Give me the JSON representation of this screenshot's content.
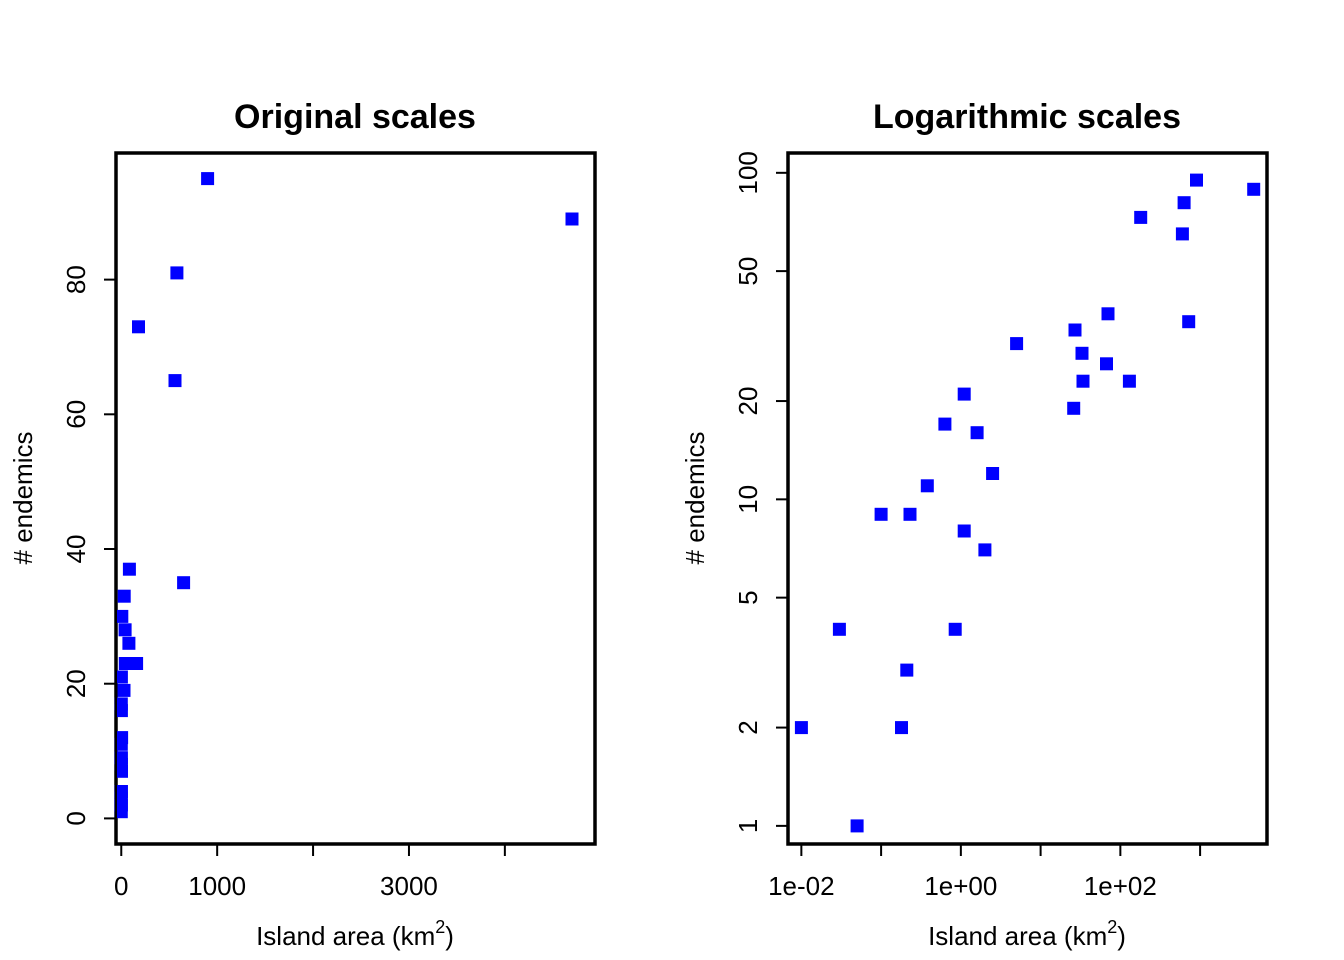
{
  "chart_data": [
    {
      "type": "scatter",
      "title": "Original scales",
      "xlabel": "Island area (km",
      "xlabel_sup": "2",
      "xlabel_close": ")",
      "ylabel": "# endemics",
      "x_scale": "linear",
      "y_scale": "linear",
      "xlim": [
        -55,
        4940
      ],
      "ylim": [
        -3.8,
        98.8
      ],
      "x_ticks": [
        0,
        1000,
        2000,
        3000,
        4000
      ],
      "x_tick_labels": [
        "0",
        "1000",
        "",
        "3000",
        ""
      ],
      "y_ticks": [
        0,
        20,
        40,
        60,
        80
      ],
      "y_tick_labels": [
        "0",
        "20",
        "40",
        "60",
        "80"
      ],
      "marker_color": "#0000ff",
      "grid": false,
      "points": [
        {
          "x": 0.01,
          "y": 2
        },
        {
          "x": 0.04,
          "y": 4
        },
        {
          "x": 0.06,
          "y": 1
        },
        {
          "x": 0.1,
          "y": 9
        },
        {
          "x": 0.18,
          "y": 2
        },
        {
          "x": 0.2,
          "y": 3
        },
        {
          "x": 0.25,
          "y": 9
        },
        {
          "x": 0.4,
          "y": 11
        },
        {
          "x": 0.6,
          "y": 17
        },
        {
          "x": 0.85,
          "y": 4
        },
        {
          "x": 1.2,
          "y": 21
        },
        {
          "x": 1.2,
          "y": 8
        },
        {
          "x": 1.8,
          "y": 16
        },
        {
          "x": 2.3,
          "y": 7
        },
        {
          "x": 3.0,
          "y": 12
        },
        {
          "x": 5.5,
          "y": 30
        },
        {
          "x": 30,
          "y": 33
        },
        {
          "x": 28,
          "y": 19
        },
        {
          "x": 40,
          "y": 28
        },
        {
          "x": 42,
          "y": 23
        },
        {
          "x": 80,
          "y": 26
        },
        {
          "x": 85,
          "y": 37
        },
        {
          "x": 160,
          "y": 23
        },
        {
          "x": 180,
          "y": 73
        },
        {
          "x": 560,
          "y": 65
        },
        {
          "x": 580,
          "y": 81
        },
        {
          "x": 650,
          "y": 35
        },
        {
          "x": 900,
          "y": 95
        },
        {
          "x": 4700,
          "y": 89
        }
      ]
    },
    {
      "type": "scatter",
      "title": "Logarithmic scales",
      "xlabel": "Island area (km",
      "xlabel_sup": "2",
      "xlabel_close": ")",
      "ylabel": "# endemics",
      "x_scale": "log",
      "y_scale": "log",
      "xlim": [
        0.0068,
        6900
      ],
      "ylim": [
        0.88,
        115
      ],
      "x_ticks": [
        0.01,
        0.1,
        1,
        10,
        100,
        1000
      ],
      "x_tick_labels": [
        "1e-02",
        "",
        "1e+00",
        "",
        "1e+02",
        ""
      ],
      "y_ticks": [
        1,
        2,
        5,
        10,
        20,
        50,
        100
      ],
      "y_tick_labels": [
        "1",
        "2",
        "5",
        "10",
        "20",
        "50",
        "100"
      ],
      "marker_color": "#0000ff",
      "grid": false,
      "points": [
        {
          "x": 0.01,
          "y": 2
        },
        {
          "x": 0.03,
          "y": 4
        },
        {
          "x": 0.05,
          "y": 1
        },
        {
          "x": 0.1,
          "y": 9
        },
        {
          "x": 0.18,
          "y": 2
        },
        {
          "x": 0.21,
          "y": 3
        },
        {
          "x": 0.23,
          "y": 9
        },
        {
          "x": 0.38,
          "y": 11
        },
        {
          "x": 0.63,
          "y": 17
        },
        {
          "x": 0.85,
          "y": 4
        },
        {
          "x": 1.1,
          "y": 21
        },
        {
          "x": 1.1,
          "y": 8
        },
        {
          "x": 1.6,
          "y": 16
        },
        {
          "x": 2.0,
          "y": 7
        },
        {
          "x": 2.5,
          "y": 12
        },
        {
          "x": 5.0,
          "y": 30
        },
        {
          "x": 27,
          "y": 33
        },
        {
          "x": 26,
          "y": 19
        },
        {
          "x": 33,
          "y": 28
        },
        {
          "x": 34,
          "y": 23
        },
        {
          "x": 67,
          "y": 26
        },
        {
          "x": 70,
          "y": 37
        },
        {
          "x": 130,
          "y": 23
        },
        {
          "x": 180,
          "y": 73
        },
        {
          "x": 600,
          "y": 65
        },
        {
          "x": 630,
          "y": 81
        },
        {
          "x": 720,
          "y": 35
        },
        {
          "x": 900,
          "y": 95
        },
        {
          "x": 4700,
          "y": 89
        }
      ]
    }
  ]
}
